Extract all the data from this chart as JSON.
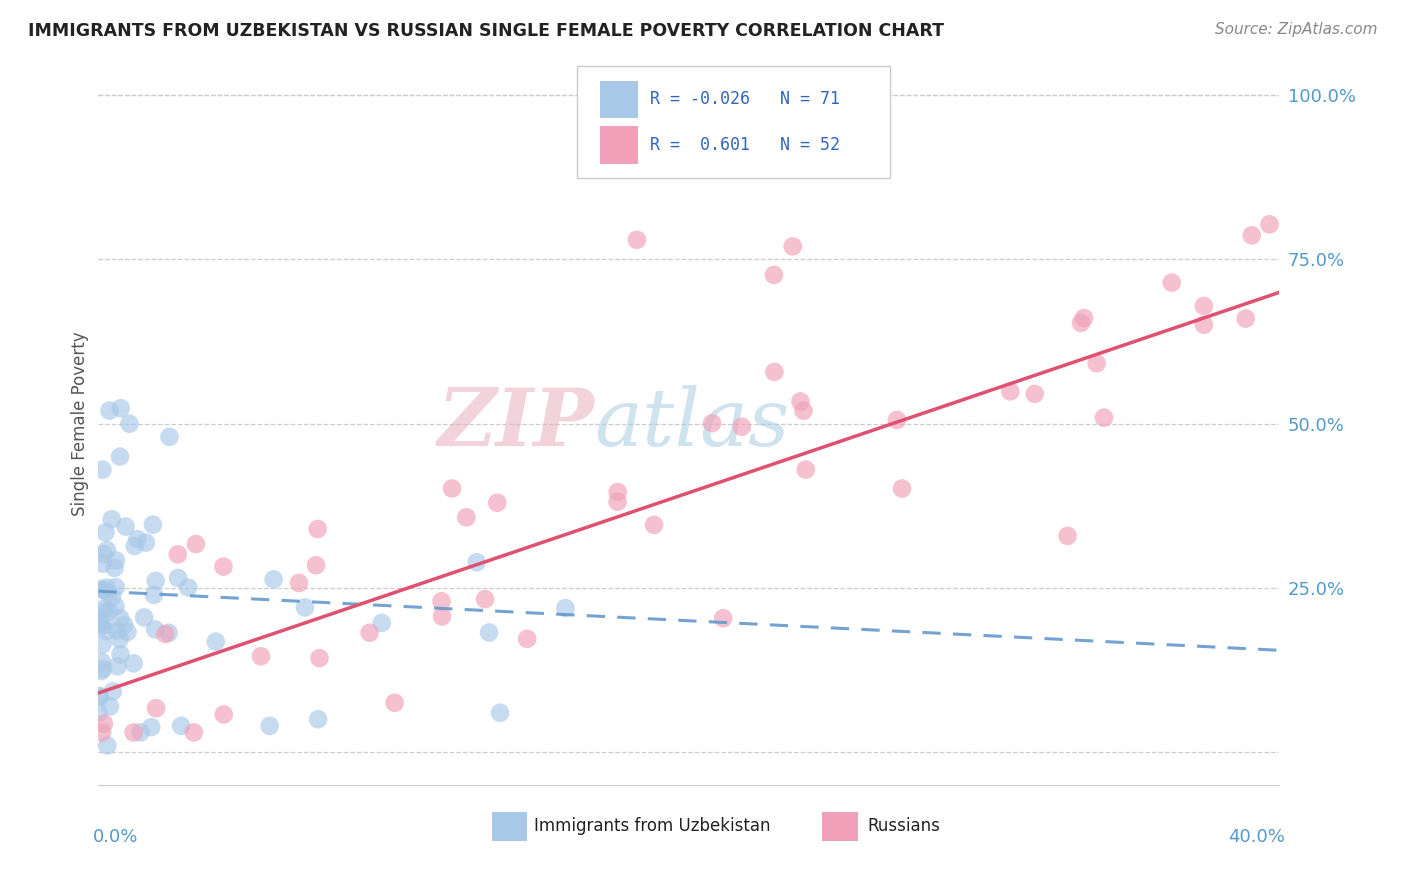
{
  "title": "IMMIGRANTS FROM UZBEKISTAN VS RUSSIAN SINGLE FEMALE POVERTY CORRELATION CHART",
  "source": "Source: ZipAtlas.com",
  "ylabel": "Single Female Poverty",
  "xlim": [
    0.0,
    0.4
  ],
  "ylim": [
    -0.05,
    1.05
  ],
  "blue_color": "#a8c8e8",
  "pink_color": "#f0a0b8",
  "blue_line_color": "#6699cc",
  "pink_line_color": "#e05070",
  "watermark_zip": "ZIP",
  "watermark_atlas": "atlas",
  "uzbek_seed": 42,
  "russian_seed": 99,
  "uzbek_n": 71,
  "russian_n": 52,
  "uzbek_R": -0.026,
  "russian_R": 0.601,
  "uzbek_trend_x": [
    0.0,
    0.4
  ],
  "uzbek_trend_y": [
    0.245,
    0.155
  ],
  "russian_trend_x": [
    0.0,
    0.4
  ],
  "russian_trend_y": [
    0.09,
    0.7
  ]
}
